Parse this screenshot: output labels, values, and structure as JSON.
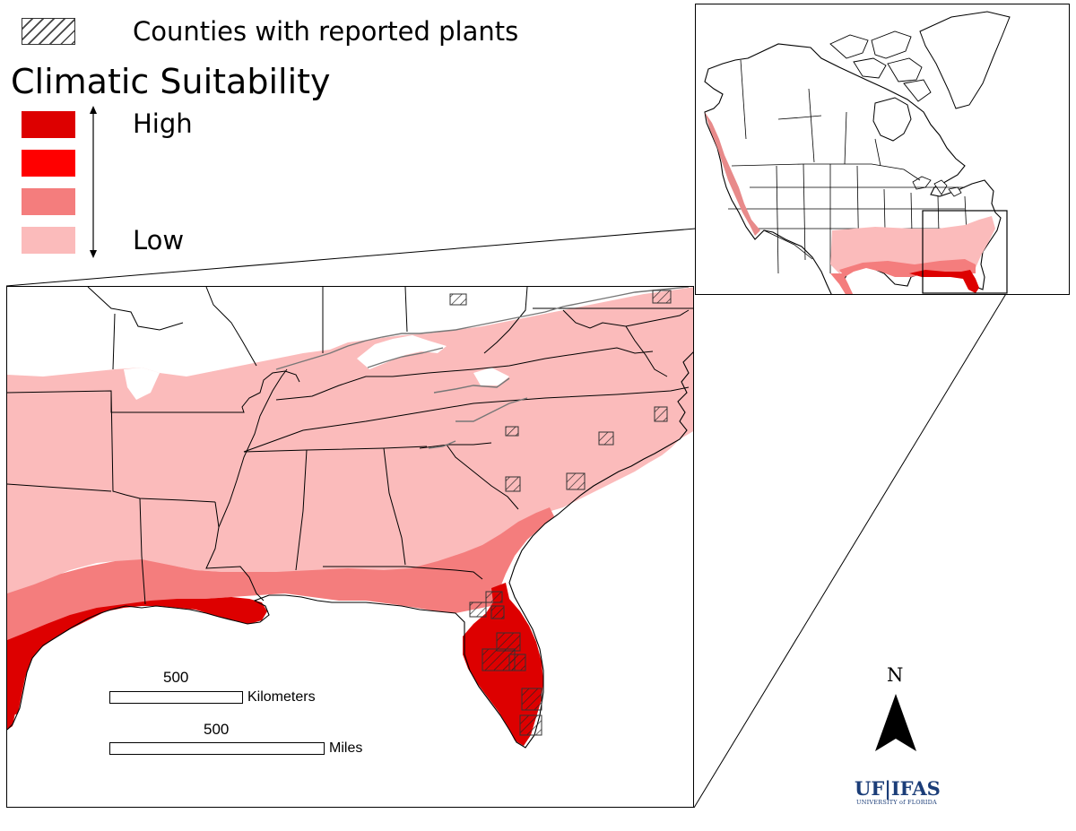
{
  "legend": {
    "counties_label": "Counties with reported plants",
    "title": "Climatic Suitability",
    "high_label": "High",
    "low_label": "Low",
    "scale_colors": [
      "#dd0000",
      "#ff0000",
      "#f47d7d",
      "#fbbbbb"
    ]
  },
  "colors": {
    "suitability_highest": "#dd0000",
    "suitability_high": "#ff0000",
    "suitability_medium": "#f47d7d",
    "suitability_low": "#fbbbbb",
    "logo": "#1b3d78"
  },
  "scale_bars": [
    {
      "value": "500",
      "unit": "Kilometers"
    },
    {
      "value": "500",
      "unit": "Miles"
    }
  ],
  "north_arrow": {
    "letter": "N"
  },
  "logo": {
    "main": "UF|IFAS",
    "sub": "UNIVERSITY of FLORIDA"
  }
}
